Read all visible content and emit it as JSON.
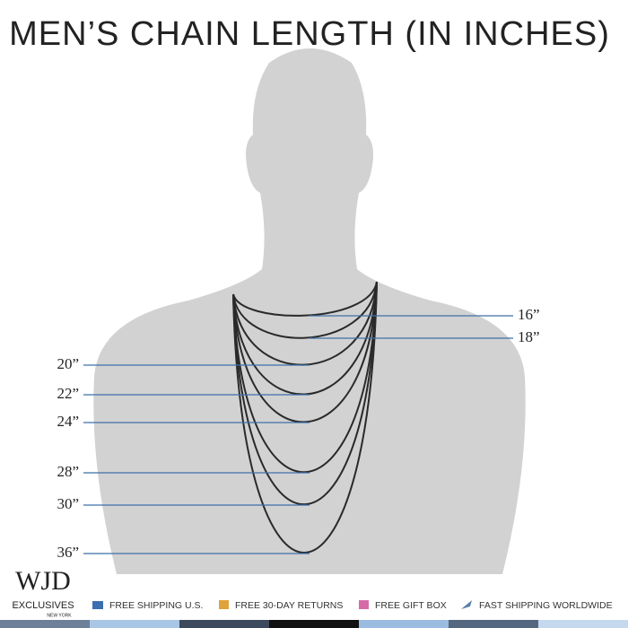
{
  "title": "MEN’S CHAIN LENGTH (IN INCHES)",
  "lengths": [
    "16”",
    "18”",
    "20”",
    "22”",
    "24”",
    "28”",
    "30”",
    "36”"
  ],
  "logo": {
    "mark": "WJD",
    "name": "EXCLUSIVES",
    "city": "NEW YORK"
  },
  "perks": [
    "FREE SHIPPING U.S.",
    "FREE 30-DAY RETURNS",
    "FREE GIFT BOX",
    "FAST SHIPPING WORLDWIDE"
  ]
}
